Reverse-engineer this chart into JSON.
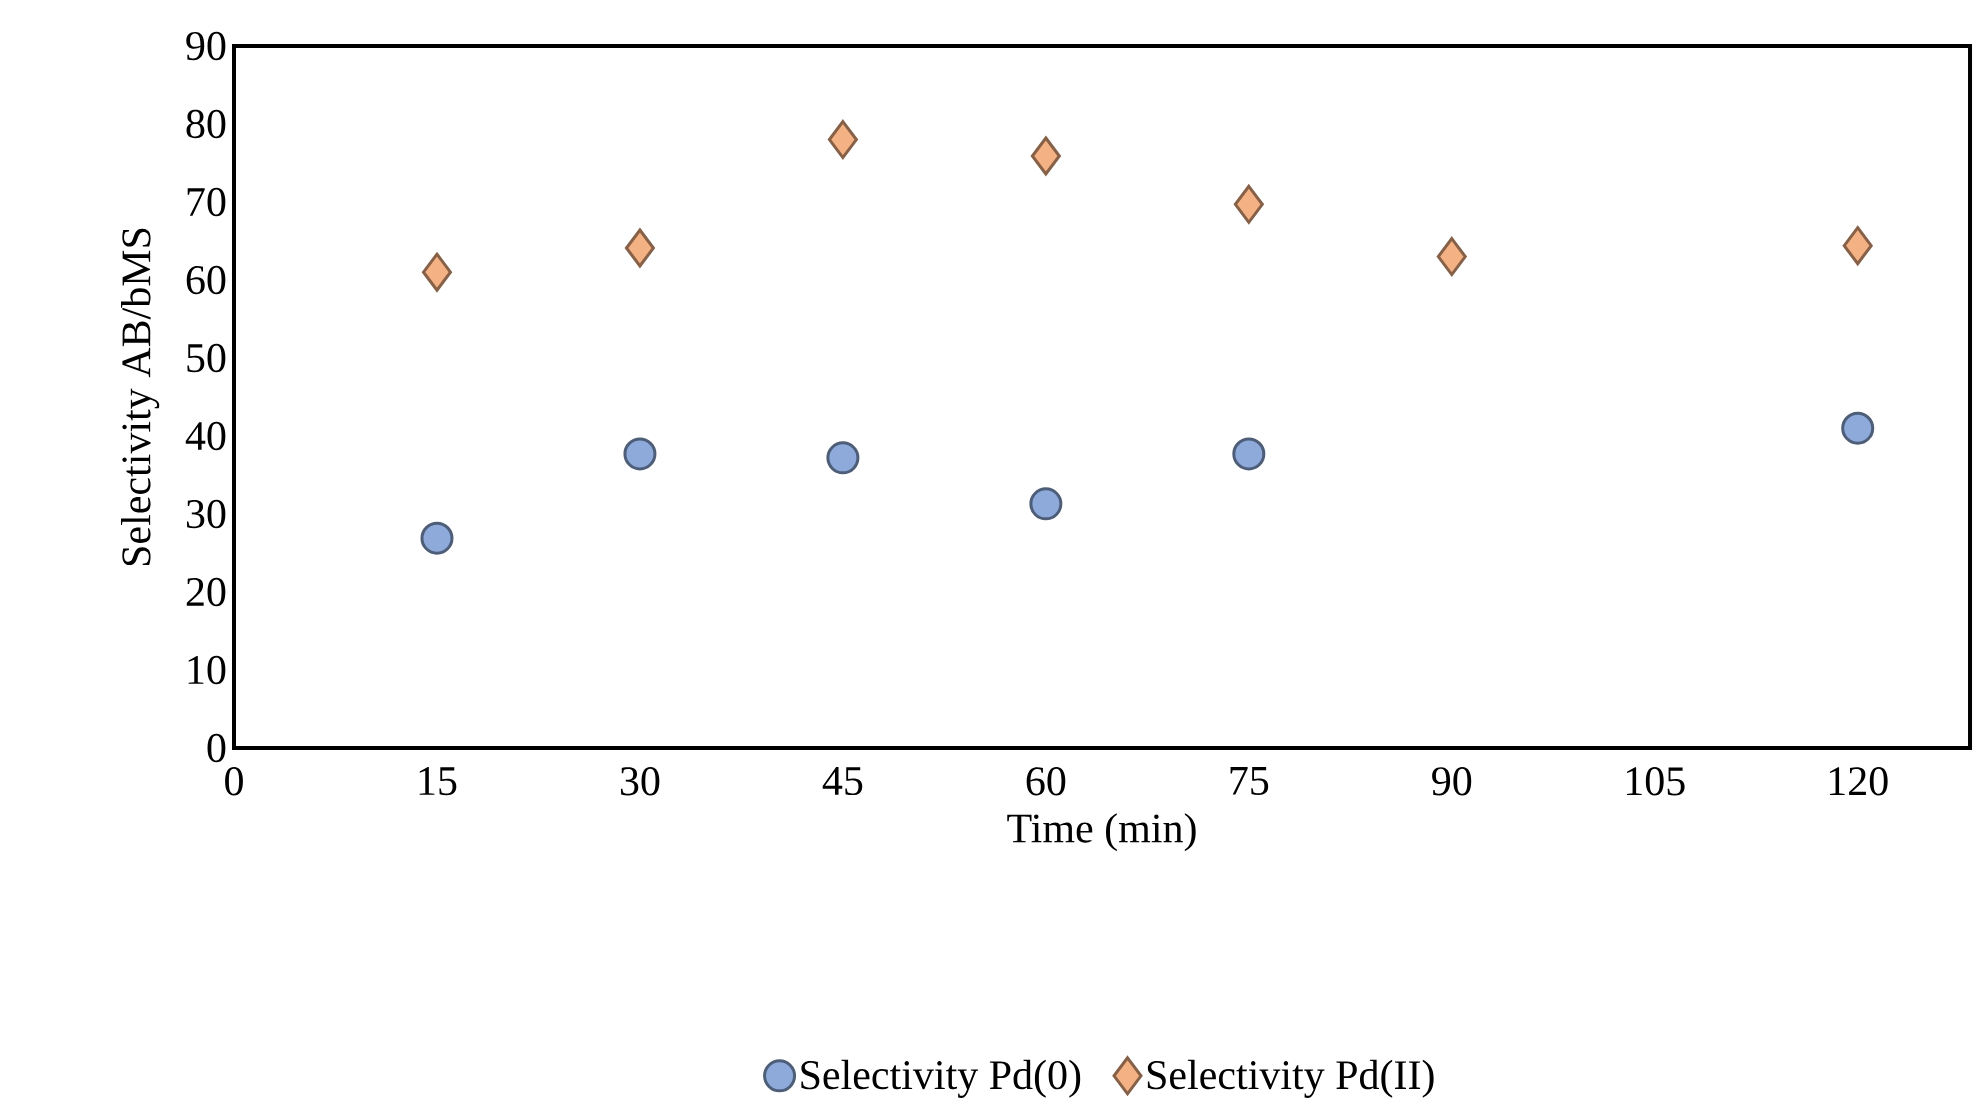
{
  "chart_data": {
    "type": "scatter",
    "xlabel": "Time (min)",
    "ylabel": "Selectivity AB/bMS",
    "xlim": [
      0,
      128.3
    ],
    "xticks": [
      0,
      15,
      30,
      45,
      60,
      75,
      90,
      105,
      120
    ],
    "ylim": [
      0,
      90
    ],
    "yticks": [
      0,
      10,
      20,
      30,
      40,
      50,
      60,
      70,
      80,
      90
    ],
    "grid": false,
    "legend": "bottom",
    "series": [
      {
        "name": "Selectivity Pd(0)",
        "color": "#8eaadb",
        "marker": "circle",
        "x": [
          15,
          30,
          45,
          60,
          75,
          120
        ],
        "values": [
          26.9,
          37.7,
          37.2,
          31.3,
          37.7,
          41
        ]
      },
      {
        "name": "Selectivity Pd(II)",
        "color": "#f4b183",
        "marker": "diamond",
        "x": [
          15,
          30,
          45,
          60,
          75,
          90,
          120
        ],
        "values": [
          61,
          64.1,
          78,
          75.9,
          69.7,
          63,
          64.4
        ]
      }
    ]
  }
}
